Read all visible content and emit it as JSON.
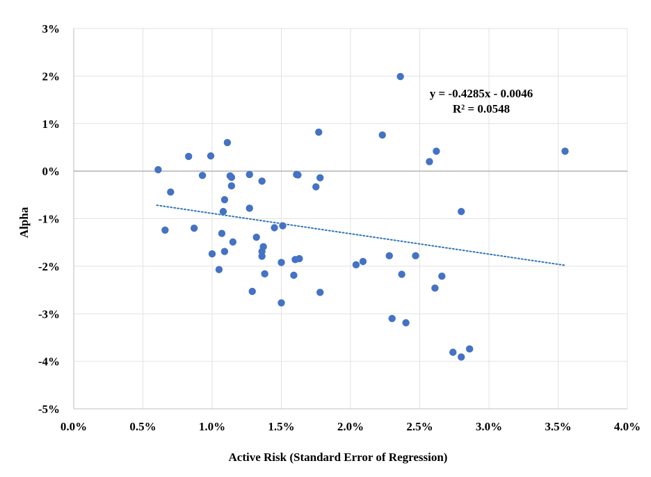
{
  "chart_data": {
    "type": "scatter",
    "xlabel": "Active Risk (Standard Error of Regression)",
    "ylabel": "Alpha",
    "xlim": [
      0.0,
      0.04
    ],
    "ylim": [
      -0.05,
      0.03
    ],
    "x_ticks": [
      0.0,
      0.005,
      0.01,
      0.015,
      0.02,
      0.025,
      0.03,
      0.035,
      0.04
    ],
    "x_tick_labels": [
      "0.0%",
      "0.5%",
      "1.0%",
      "1.5%",
      "2.0%",
      "2.5%",
      "3.0%",
      "3.5%",
      "4.0%"
    ],
    "y_ticks": [
      0.03,
      0.02,
      0.01,
      0.0,
      -0.01,
      -0.02,
      -0.03,
      -0.04,
      -0.05
    ],
    "y_tick_labels": [
      "3%",
      "2%",
      "1%",
      "0%",
      "-1%",
      "-2%",
      "-3%",
      "-4%",
      "-5%"
    ],
    "grid": true,
    "marker_color": "#4472C4",
    "trendline": {
      "slope": -0.4285,
      "intercept": -0.0046,
      "x_range": [
        0.006,
        0.0355
      ],
      "style": "dotted",
      "color": "#2E75B6",
      "equation_label": "y = -0.4285x - 0.0046",
      "r2_label": "R² = 0.0548",
      "label_position": "top-right"
    },
    "points": [
      [
        0.0061,
        0.0003
      ],
      [
        0.0066,
        -0.0124
      ],
      [
        0.007,
        -0.0044
      ],
      [
        0.0083,
        0.0031
      ],
      [
        0.0087,
        -0.012
      ],
      [
        0.0093,
        -0.0009
      ],
      [
        0.0099,
        0.0032
      ],
      [
        0.01,
        -0.0174
      ],
      [
        0.0105,
        -0.0207
      ],
      [
        0.0107,
        -0.0131
      ],
      [
        0.0108,
        -0.0085
      ],
      [
        0.0109,
        -0.006
      ],
      [
        0.0109,
        -0.0169
      ],
      [
        0.0111,
        0.006
      ],
      [
        0.0113,
        -0.001
      ],
      [
        0.0114,
        -0.0013
      ],
      [
        0.0114,
        -0.0031
      ],
      [
        0.0115,
        -0.0149
      ],
      [
        0.0127,
        -0.0007
      ],
      [
        0.0127,
        -0.0078
      ],
      [
        0.0129,
        -0.0253
      ],
      [
        0.0132,
        -0.0139
      ],
      [
        0.0136,
        -0.0021
      ],
      [
        0.0136,
        -0.0179
      ],
      [
        0.0136,
        -0.0169
      ],
      [
        0.0137,
        -0.0159
      ],
      [
        0.0138,
        -0.0216
      ],
      [
        0.0145,
        -0.0119
      ],
      [
        0.015,
        -0.0192
      ],
      [
        0.015,
        -0.0277
      ],
      [
        0.0151,
        -0.0115
      ],
      [
        0.0159,
        -0.0219
      ],
      [
        0.016,
        -0.0186
      ],
      [
        0.0161,
        -0.0007
      ],
      [
        0.0162,
        -0.0008
      ],
      [
        0.0163,
        -0.0184
      ],
      [
        0.0175,
        -0.0033
      ],
      [
        0.0177,
        0.0082
      ],
      [
        0.0178,
        -0.0255
      ],
      [
        0.0178,
        -0.0014
      ],
      [
        0.0204,
        -0.0197
      ],
      [
        0.0209,
        -0.019
      ],
      [
        0.0223,
        0.0076
      ],
      [
        0.0228,
        -0.0178
      ],
      [
        0.023,
        -0.031
      ],
      [
        0.0236,
        0.0199
      ],
      [
        0.0237,
        -0.0217
      ],
      [
        0.024,
        -0.0319
      ],
      [
        0.0247,
        -0.0178
      ],
      [
        0.0257,
        0.002
      ],
      [
        0.0261,
        -0.0246
      ],
      [
        0.0262,
        0.0042
      ],
      [
        0.0266,
        -0.0221
      ],
      [
        0.0274,
        -0.0381
      ],
      [
        0.028,
        -0.0085
      ],
      [
        0.028,
        -0.0391
      ],
      [
        0.0286,
        -0.0374
      ],
      [
        0.0355,
        0.0042
      ]
    ]
  }
}
